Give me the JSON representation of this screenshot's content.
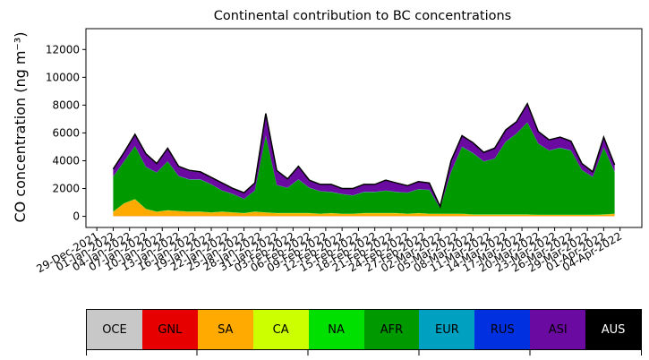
{
  "chart_data": {
    "type": "area",
    "stacked": true,
    "title": "Continental contribution to BC concentrations",
    "ylabel": "CO concentration (ng m⁻³)",
    "xlabel": "",
    "ylim": [
      -800,
      13500
    ],
    "yticks": [
      0,
      2000,
      4000,
      6000,
      8000,
      10000,
      12000
    ],
    "xlim": [
      "2021-12-27",
      "2022-04-08"
    ],
    "xticks": [
      "29-Dec-2021",
      "01-Jan-2022",
      "04-Jan-2022",
      "07-Jan-2022",
      "10-Jan-2022",
      "13-Jan-2022",
      "16-Jan-2022",
      "19-Jan-2022",
      "22-Jan-2022",
      "25-Jan-2022",
      "28-Jan-2022",
      "31-Jan-2022",
      "03-Feb-2022",
      "06-Feb-2022",
      "09-Feb-2022",
      "12-Feb-2022",
      "15-Feb-2022",
      "18-Feb-2022",
      "21-Feb-2022",
      "24-Feb-2022",
      "27-Feb-2022",
      "02-Mar-2022",
      "05-Mar-2022",
      "08-Mar-2022",
      "11-Mar-2022",
      "14-Mar-2022",
      "17-Mar-2022",
      "20-Mar-2022",
      "23-Mar-2022",
      "26-Mar-2022",
      "29-Mar-2022",
      "01-Apr-2022",
      "04-Apr-2022"
    ],
    "grid": false,
    "x": [
      "2022-01-01",
      "2022-01-03",
      "2022-01-05",
      "2022-01-07",
      "2022-01-09",
      "2022-01-11",
      "2022-01-13",
      "2022-01-15",
      "2022-01-17",
      "2022-01-19",
      "2022-01-21",
      "2022-01-23",
      "2022-01-25",
      "2022-01-27",
      "2022-01-29",
      "2022-01-31",
      "2022-02-02",
      "2022-02-04",
      "2022-02-06",
      "2022-02-08",
      "2022-02-10",
      "2022-02-12",
      "2022-02-14",
      "2022-02-16",
      "2022-02-18",
      "2022-02-20",
      "2022-02-22",
      "2022-02-24",
      "2022-02-26",
      "2022-02-28",
      "2022-03-02",
      "2022-03-04",
      "2022-03-06",
      "2022-03-08",
      "2022-03-10",
      "2022-03-12",
      "2022-03-14",
      "2022-03-16",
      "2022-03-18",
      "2022-03-20",
      "2022-03-22",
      "2022-03-24",
      "2022-03-26",
      "2022-03-28",
      "2022-03-30",
      "2022-04-01",
      "2022-04-03"
    ],
    "series": [
      {
        "name": "OCE",
        "color": "#c8c8c8",
        "values": [
          10,
          10,
          10,
          10,
          10,
          10,
          10,
          10,
          10,
          10,
          10,
          10,
          10,
          10,
          10,
          10,
          10,
          10,
          10,
          10,
          10,
          10,
          10,
          10,
          10,
          10,
          10,
          10,
          10,
          10,
          10,
          10,
          10,
          10,
          10,
          10,
          10,
          10,
          10,
          10,
          10,
          10,
          10,
          10,
          10,
          10,
          10
        ]
      },
      {
        "name": "GNL",
        "color": "#e60000",
        "values": [
          10,
          10,
          10,
          10,
          10,
          10,
          10,
          10,
          10,
          10,
          10,
          10,
          10,
          10,
          10,
          10,
          10,
          10,
          10,
          10,
          10,
          10,
          10,
          10,
          10,
          10,
          10,
          10,
          10,
          10,
          10,
          10,
          10,
          10,
          10,
          10,
          10,
          10,
          10,
          10,
          10,
          10,
          10,
          10,
          10,
          10,
          10
        ]
      },
      {
        "name": "SA",
        "color": "#ffaa00",
        "values": [
          300,
          900,
          1200,
          500,
          300,
          400,
          350,
          300,
          300,
          250,
          300,
          250,
          200,
          300,
          250,
          200,
          200,
          200,
          200,
          150,
          200,
          150,
          150,
          200,
          200,
          200,
          200,
          150,
          200,
          150,
          150,
          150,
          150,
          100,
          100,
          100,
          100,
          100,
          100,
          80,
          80,
          80,
          80,
          80,
          80,
          100,
          150
        ]
      },
      {
        "name": "CA",
        "color": "#ccff00",
        "values": [
          10,
          10,
          10,
          10,
          10,
          10,
          10,
          10,
          10,
          10,
          10,
          10,
          10,
          10,
          10,
          10,
          10,
          10,
          10,
          10,
          10,
          10,
          10,
          10,
          10,
          10,
          10,
          10,
          10,
          10,
          10,
          10,
          10,
          10,
          10,
          10,
          10,
          10,
          10,
          10,
          10,
          10,
          10,
          10,
          10,
          10,
          10
        ]
      },
      {
        "name": "NA",
        "color": "#00e000",
        "values": [
          10,
          10,
          10,
          10,
          10,
          10,
          10,
          10,
          10,
          10,
          10,
          10,
          10,
          10,
          10,
          10,
          10,
          10,
          10,
          10,
          10,
          10,
          10,
          10,
          10,
          10,
          10,
          10,
          10,
          10,
          10,
          10,
          10,
          10,
          10,
          10,
          10,
          10,
          10,
          10,
          10,
          10,
          10,
          10,
          10,
          10,
          10
        ]
      },
      {
        "name": "AFR",
        "color": "#009900",
        "values": [
          2500,
          3000,
          3800,
          3000,
          2800,
          3500,
          2500,
          2300,
          2300,
          2000,
          1500,
          1300,
          1000,
          1500,
          5500,
          2000,
          1800,
          2400,
          1800,
          1600,
          1500,
          1400,
          1300,
          1500,
          1500,
          1600,
          1500,
          1500,
          1700,
          1700,
          400,
          3000,
          4800,
          4400,
          3800,
          4000,
          5200,
          5800,
          6600,
          5100,
          4600,
          4800,
          4600,
          3200,
          2700,
          4800,
          3000
        ]
      },
      {
        "name": "EUR",
        "color": "#00a0c0",
        "values": [
          10,
          10,
          10,
          10,
          10,
          10,
          10,
          10,
          10,
          10,
          10,
          10,
          10,
          10,
          10,
          10,
          10,
          10,
          10,
          10,
          10,
          10,
          10,
          10,
          10,
          10,
          10,
          10,
          10,
          10,
          10,
          10,
          10,
          10,
          10,
          10,
          10,
          10,
          10,
          10,
          10,
          10,
          10,
          10,
          10,
          10,
          10
        ]
      },
      {
        "name": "RUS",
        "color": "#0030e0",
        "values": [
          10,
          10,
          10,
          10,
          10,
          10,
          10,
          10,
          10,
          10,
          10,
          10,
          10,
          10,
          10,
          10,
          10,
          10,
          10,
          10,
          10,
          10,
          10,
          10,
          10,
          10,
          10,
          10,
          10,
          10,
          10,
          10,
          10,
          10,
          10,
          10,
          10,
          10,
          10,
          10,
          10,
          10,
          10,
          10,
          10,
          10,
          10
        ]
      },
      {
        "name": "ASI",
        "color": "#6a0aa0",
        "values": [
          500,
          600,
          800,
          900,
          600,
          900,
          700,
          600,
          500,
          500,
          500,
          400,
          400,
          500,
          1600,
          1000,
          600,
          900,
          500,
          500,
          500,
          400,
          500,
          500,
          500,
          700,
          600,
          500,
          500,
          500,
          100,
          800,
          800,
          800,
          700,
          800,
          900,
          900,
          1400,
          900,
          800,
          800,
          700,
          500,
          400,
          800,
          500
        ]
      },
      {
        "name": "AUS",
        "color": "#000000",
        "values": [
          0,
          0,
          0,
          0,
          0,
          0,
          0,
          0,
          0,
          0,
          0,
          0,
          0,
          0,
          0,
          0,
          0,
          0,
          0,
          0,
          0,
          0,
          0,
          0,
          0,
          0,
          0,
          0,
          0,
          0,
          0,
          0,
          0,
          0,
          0,
          0,
          0,
          0,
          0,
          0,
          0,
          0,
          0,
          0,
          0,
          0,
          0
        ]
      }
    ],
    "total": [
      3400,
      4600,
      5900,
      4500,
      3800,
      4900,
      3600,
      3300,
      3200,
      2800,
      2400,
      2000,
      1700,
      2400,
      7400,
      3300,
      2700,
      3600,
      2600,
      2300,
      2300,
      2000,
      2000,
      2300,
      2300,
      2600,
      2400,
      2200,
      2500,
      2400,
      700,
      4000,
      5800,
      5300,
      4600,
      4900,
      6200,
      6800,
      8100,
      6100,
      5500,
      5700,
      5400,
      3800,
      3200,
      5700,
      3700
    ],
    "legend_placement": "bottom-colorbar",
    "legend": [
      "OCE",
      "GNL",
      "SA",
      "CA",
      "NA",
      "AFR",
      "EUR",
      "RUS",
      "ASI",
      "AUS"
    ]
  }
}
